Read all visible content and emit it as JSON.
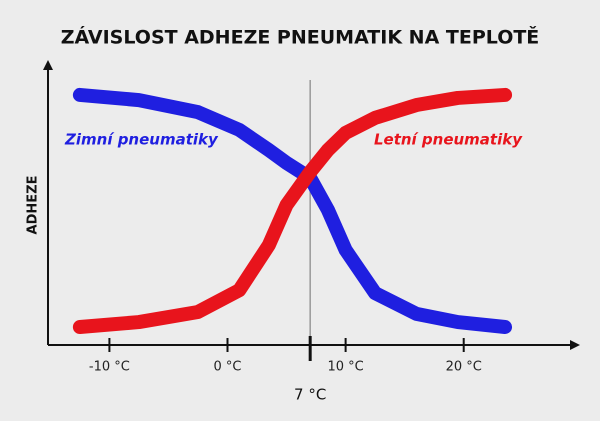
{
  "chart_data": {
    "type": "line",
    "title": "ZÁVISLOST ADHEZE PNEUMATIK NA TEPLOTĚ",
    "y_label": "ADHEZE",
    "x": [
      -12.5,
      -7.5,
      -2.5,
      1,
      3.5,
      5,
      7,
      8.5,
      10,
      12.5,
      16,
      19.5,
      23.5
    ],
    "series": [
      {
        "name": "Zimní pneumatiky",
        "color": "#1f1fe0",
        "values": [
          91.6,
          89.7,
          85.3,
          78.8,
          71.4,
          66.7,
          61.2,
          49.5,
          34.8,
          19.0,
          11.4,
          8.4,
          6.6
        ]
      },
      {
        "name": "Letní pneumatiky",
        "color": "#e8141c",
        "values": [
          6.6,
          8.4,
          12.1,
          20.1,
          36.6,
          51.3,
          63.4,
          71.4,
          77.7,
          83.2,
          87.9,
          90.5,
          91.6
        ]
      }
    ],
    "xlim": [
      -15.2,
      29
    ],
    "ylim": [
      0,
      100
    ],
    "xticks": [
      {
        "value": -10,
        "label": "-10 °C"
      },
      {
        "value": 0,
        "label": "0 °C"
      },
      {
        "value": 10,
        "label": "10 °C"
      },
      {
        "value": 20,
        "label": "20 °C"
      }
    ],
    "marker": {
      "value": 7,
      "label": "7 °C"
    }
  }
}
